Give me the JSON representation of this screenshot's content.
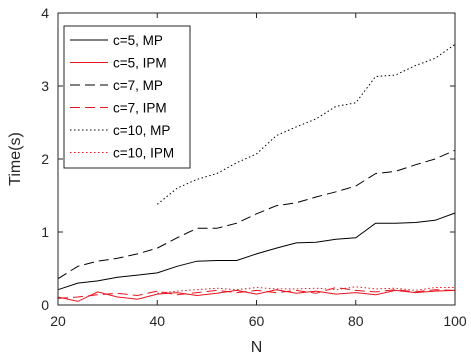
{
  "chart_data": {
    "type": "line",
    "xlabel": "N",
    "ylabel": "Time(s)",
    "xlim": [
      20,
      100
    ],
    "ylim": [
      0,
      4
    ],
    "xticks": [
      20,
      40,
      60,
      80,
      100
    ],
    "yticks": [
      0,
      1,
      2,
      3,
      4
    ],
    "grid": false,
    "legend_position": "top-left",
    "series": [
      {
        "name": "c=5, MP",
        "color": "#000000",
        "dash": "solid",
        "x": [
          20,
          24,
          28,
          32,
          36,
          40,
          44,
          48,
          52,
          56,
          60,
          64,
          68,
          72,
          76,
          80,
          84,
          88,
          92,
          96,
          100
        ],
        "y": [
          0.21,
          0.3,
          0.33,
          0.38,
          0.41,
          0.44,
          0.53,
          0.6,
          0.61,
          0.61,
          0.7,
          0.78,
          0.85,
          0.86,
          0.9,
          0.92,
          1.12,
          1.12,
          1.13,
          1.16,
          1.26
        ]
      },
      {
        "name": "c=5, IPM",
        "color": "#e8141e",
        "dash": "solid",
        "x": [
          20,
          24,
          28,
          32,
          36,
          40,
          44,
          48,
          52,
          56,
          60,
          64,
          68,
          72,
          76,
          80,
          84,
          88,
          92,
          96,
          100
        ],
        "y": [
          0.11,
          0.05,
          0.18,
          0.11,
          0.08,
          0.15,
          0.17,
          0.13,
          0.16,
          0.2,
          0.15,
          0.21,
          0.16,
          0.19,
          0.15,
          0.17,
          0.14,
          0.2,
          0.17,
          0.19,
          0.2
        ]
      },
      {
        "name": "c=7, MP",
        "color": "#000000",
        "dash": "dashed",
        "x": [
          20,
          24,
          28,
          32,
          36,
          40,
          44,
          48,
          52,
          56,
          60,
          64,
          68,
          72,
          76,
          80,
          84,
          88,
          92,
          96,
          100
        ],
        "y": [
          0.36,
          0.53,
          0.6,
          0.64,
          0.7,
          0.78,
          0.92,
          1.05,
          1.05,
          1.12,
          1.25,
          1.36,
          1.4,
          1.48,
          1.55,
          1.63,
          1.8,
          1.83,
          1.92,
          2.0,
          2.12
        ]
      },
      {
        "name": "c=7, IPM",
        "color": "#e8141e",
        "dash": "dashed",
        "x": [
          20,
          24,
          28,
          32,
          36,
          40,
          44,
          48,
          52,
          56,
          60,
          64,
          68,
          72,
          76,
          80,
          84,
          88,
          92,
          96,
          100
        ],
        "y": [
          0.09,
          0.11,
          0.14,
          0.16,
          0.13,
          0.19,
          0.14,
          0.17,
          0.2,
          0.17,
          0.2,
          0.17,
          0.2,
          0.16,
          0.24,
          0.2,
          0.18,
          0.21,
          0.18,
          0.21,
          0.2
        ]
      },
      {
        "name": "c=10, MP",
        "color": "#000000",
        "dash": "dotted",
        "x": [
          40,
          44,
          48,
          52,
          56,
          60,
          64,
          68,
          72,
          76,
          80,
          84,
          88,
          92,
          96,
          100
        ],
        "y": [
          1.38,
          1.6,
          1.72,
          1.8,
          1.95,
          2.07,
          2.32,
          2.44,
          2.55,
          2.72,
          2.77,
          3.13,
          3.15,
          3.28,
          3.38,
          3.57
        ]
      },
      {
        "name": "c=10, IPM",
        "color": "#e8141e",
        "dash": "dotted",
        "x": [
          40,
          44,
          48,
          52,
          56,
          60,
          64,
          68,
          72,
          76,
          80,
          84,
          88,
          92,
          96,
          100
        ],
        "y": [
          0.16,
          0.19,
          0.21,
          0.23,
          0.21,
          0.24,
          0.22,
          0.22,
          0.23,
          0.21,
          0.25,
          0.22,
          0.23,
          0.2,
          0.24,
          0.24
        ]
      }
    ]
  }
}
